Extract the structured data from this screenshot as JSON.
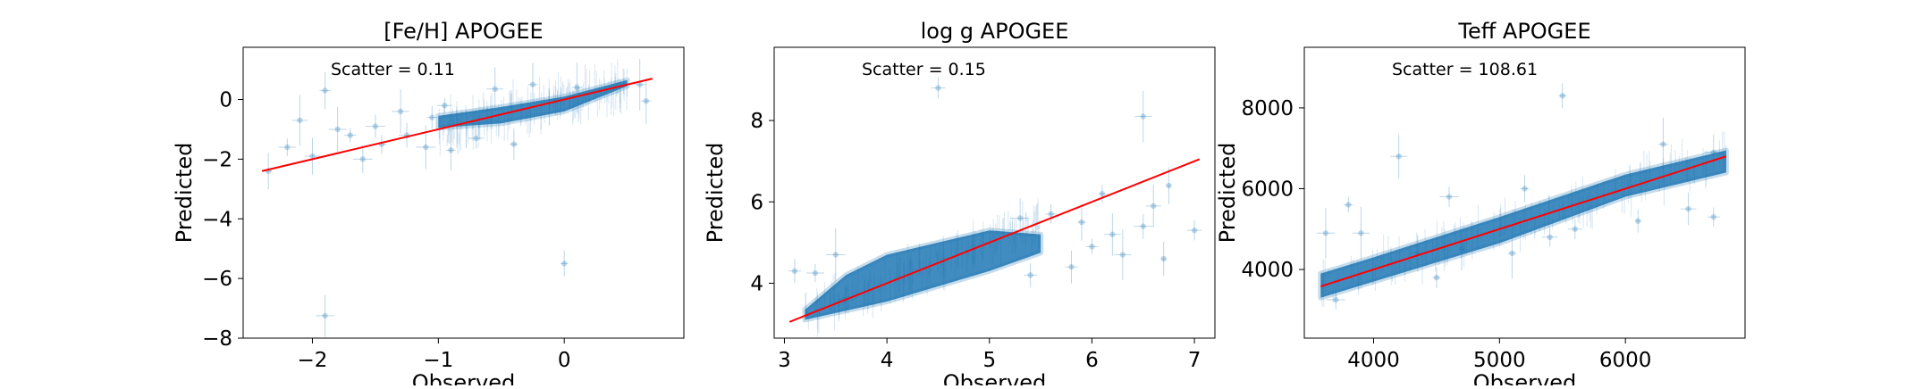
{
  "chart_data": [
    {
      "type": "scatter",
      "title": "[Fe/H] APOGEE",
      "xlabel": "Observed",
      "ylabel": "Predicted",
      "annotation": "Scatter = 0.11",
      "xlim": [
        -2.55,
        0.95
      ],
      "ylim": [
        -8.0,
        1.75
      ],
      "xticks": [
        -2,
        -1,
        0
      ],
      "xtick_labels": [
        "−2",
        "−1",
        "0"
      ],
      "yticks": [
        -8,
        -6,
        -4,
        -2,
        0
      ],
      "ytick_labels": [
        "−8",
        "−6",
        "−4",
        "−2",
        "0"
      ],
      "fit_line": [
        [
          -2.4,
          -2.4
        ],
        [
          0.7,
          0.7
        ]
      ],
      "dense_region": [
        [
          -1.0,
          -0.95
        ],
        [
          -0.5,
          -0.8
        ],
        [
          0.0,
          -0.4
        ],
        [
          0.5,
          0.45
        ],
        [
          0.5,
          0.65
        ],
        [
          0.0,
          0.1
        ],
        [
          -0.5,
          -0.25
        ],
        [
          -1.0,
          -0.55
        ]
      ],
      "points": [
        [
          -2.35,
          -2.4
        ],
        [
          -2.2,
          -1.6
        ],
        [
          -2.1,
          -0.7
        ],
        [
          -2.0,
          -1.9
        ],
        [
          -1.9,
          0.3
        ],
        [
          -1.9,
          -7.25
        ],
        [
          -1.8,
          -1.0
        ],
        [
          -1.7,
          -1.2
        ],
        [
          -1.6,
          -2.0
        ],
        [
          -1.5,
          -0.9
        ],
        [
          -1.45,
          -1.5
        ],
        [
          -1.3,
          -0.4
        ],
        [
          -1.25,
          -1.2
        ],
        [
          -1.1,
          -1.6
        ],
        [
          -1.05,
          -0.6
        ],
        [
          -0.95,
          -0.2
        ],
        [
          -0.9,
          -1.7
        ],
        [
          -0.7,
          -1.3
        ],
        [
          -0.55,
          0.35
        ],
        [
          -0.4,
          -1.5
        ],
        [
          -0.25,
          0.5
        ],
        [
          0.0,
          -5.5
        ],
        [
          0.1,
          0.4
        ],
        [
          0.6,
          0.5
        ],
        [
          0.65,
          -0.05
        ]
      ],
      "errors": true,
      "point_color": "#1f77b4",
      "line_color": "#ff0000",
      "grid": false
    },
    {
      "type": "scatter",
      "title": "log g APOGEE",
      "xlabel": "Observed",
      "ylabel": "Predicted",
      "annotation": "Scatter = 0.15",
      "xlim": [
        2.9,
        7.2
      ],
      "ylim": [
        2.65,
        9.8
      ],
      "xticks": [
        3,
        4,
        5,
        6,
        7
      ],
      "xtick_labels": [
        "3",
        "4",
        "5",
        "6",
        "7"
      ],
      "yticks": [
        4,
        6,
        8
      ],
      "ytick_labels": [
        "4",
        "6",
        "8"
      ],
      "fit_line": [
        [
          3.05,
          3.05
        ],
        [
          7.05,
          7.05
        ]
      ],
      "dense_region": [
        [
          3.2,
          3.1
        ],
        [
          4.0,
          3.55
        ],
        [
          5.0,
          4.3
        ],
        [
          5.5,
          4.75
        ],
        [
          5.5,
          5.2
        ],
        [
          5.0,
          5.3
        ],
        [
          4.0,
          4.7
        ],
        [
          3.6,
          4.2
        ],
        [
          3.2,
          3.35
        ]
      ],
      "points": [
        [
          3.1,
          4.3
        ],
        [
          3.3,
          4.25
        ],
        [
          3.5,
          4.7
        ],
        [
          3.6,
          3.6
        ],
        [
          4.5,
          8.8
        ],
        [
          5.6,
          5.7
        ],
        [
          5.8,
          4.4
        ],
        [
          5.9,
          5.5
        ],
        [
          6.0,
          4.9
        ],
        [
          6.1,
          6.2
        ],
        [
          6.2,
          5.2
        ],
        [
          6.3,
          4.7
        ],
        [
          6.5,
          5.4
        ],
        [
          6.5,
          8.1
        ],
        [
          6.6,
          5.9
        ],
        [
          6.7,
          4.6
        ],
        [
          6.75,
          6.4
        ],
        [
          7.0,
          5.3
        ],
        [
          5.3,
          5.6
        ],
        [
          5.4,
          4.2
        ]
      ],
      "errors": true,
      "point_color": "#1f77b4",
      "line_color": "#ff0000",
      "grid": false
    },
    {
      "type": "scatter",
      "title": "Teff APOGEE",
      "xlabel": "Observed",
      "ylabel": "Predicted",
      "annotation": "Scatter = 108.61",
      "xlim": [
        3450,
        6950
      ],
      "ylim": [
        2300,
        9500
      ],
      "xticks": [
        4000,
        5000,
        6000
      ],
      "xtick_labels": [
        "4000",
        "5000",
        "6000"
      ],
      "yticks": [
        4000,
        6000,
        8000
      ],
      "ytick_labels": [
        "4000",
        "6000",
        "8000"
      ],
      "fit_line": [
        [
          3580,
          3580
        ],
        [
          6800,
          6800
        ]
      ],
      "dense_region": [
        [
          3580,
          3300
        ],
        [
          4000,
          3700
        ],
        [
          5000,
          4650
        ],
        [
          6000,
          5800
        ],
        [
          6800,
          6400
        ],
        [
          6800,
          6950
        ],
        [
          6000,
          6350
        ],
        [
          5000,
          5300
        ],
        [
          4000,
          4300
        ],
        [
          3580,
          3900
        ]
      ],
      "points": [
        [
          3620,
          4900
        ],
        [
          3700,
          3250
        ],
        [
          3800,
          5600
        ],
        [
          3900,
          4900
        ],
        [
          4200,
          6800
        ],
        [
          4350,
          4400
        ],
        [
          4500,
          3800
        ],
        [
          4600,
          5800
        ],
        [
          4700,
          4500
        ],
        [
          5100,
          4400
        ],
        [
          5200,
          6000
        ],
        [
          5400,
          4800
        ],
        [
          5500,
          8300
        ],
        [
          5600,
          5000
        ],
        [
          6100,
          5200
        ],
        [
          6300,
          7100
        ],
        [
          6500,
          5500
        ],
        [
          6700,
          5300
        ],
        [
          6700,
          6900
        ]
      ],
      "errors": true,
      "point_color": "#1f77b4",
      "line_color": "#ff0000",
      "grid": false
    }
  ]
}
